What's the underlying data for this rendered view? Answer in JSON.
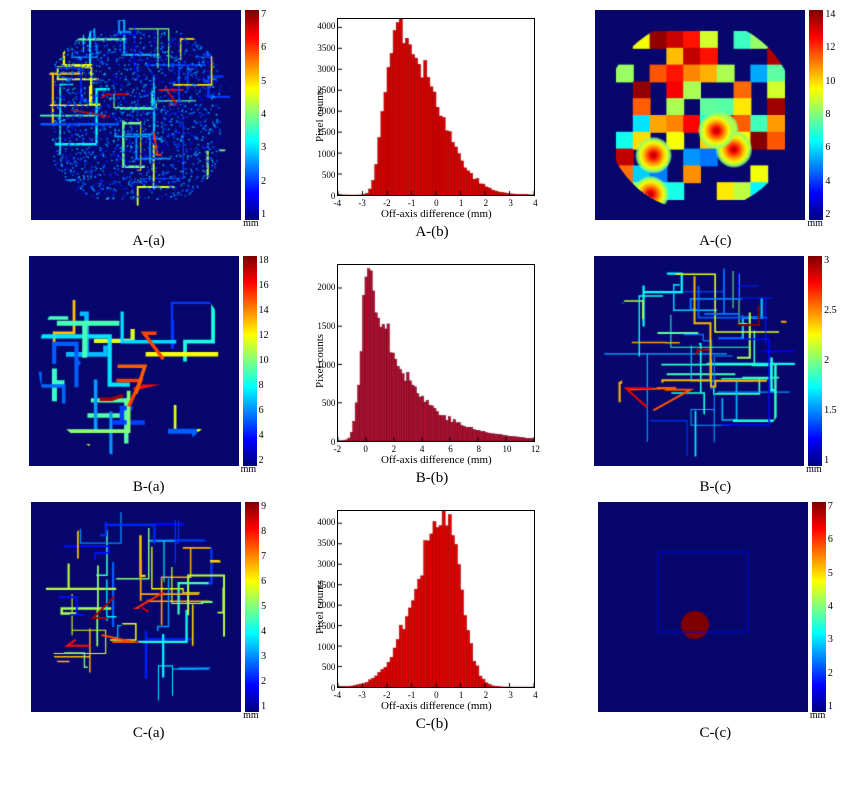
{
  "colormap_jet": [
    "#00007f",
    "#0000ff",
    "#007fff",
    "#00ffff",
    "#7fff7f",
    "#ffff00",
    "#ff7f00",
    "#ff0000",
    "#7f0000"
  ],
  "panels": {
    "A_a": {
      "caption": "A-(a)",
      "cb_min": 1,
      "cb_max": 7,
      "cb_ticks": [
        1,
        2,
        3,
        4,
        5,
        6,
        7
      ],
      "cb_unit": "mm",
      "heatmap_bg": "#06066c",
      "heatmap_size": 210
    },
    "A_b": {
      "caption": "A-(b)",
      "ylabel": "Pixel counts",
      "xlabel": "Off-axis difference (mm)",
      "xlim": [
        -4,
        4
      ],
      "xticks": [
        -4,
        -3,
        -2,
        -1,
        0,
        1,
        2,
        3,
        4
      ],
      "ylim": [
        0,
        4200
      ],
      "yticks": [
        0,
        500,
        1000,
        1500,
        2000,
        2500,
        3000,
        3500,
        4000
      ],
      "bar_color": "#d40000",
      "bar_edge": "#8b0000",
      "mode": "normal",
      "peak_x": -1.5,
      "sigma": 0.9,
      "skew": 0.6,
      "bins": 64
    },
    "A_c": {
      "caption": "A-(c)",
      "cb_min": 2,
      "cb_max": 14,
      "cb_ticks": [
        2,
        4,
        6,
        8,
        10,
        12,
        14
      ],
      "cb_unit": "mm",
      "heatmap_bg": "#06066c",
      "heatmap_size": 210
    },
    "B_a": {
      "caption": "B-(a)",
      "cb_min": 2,
      "cb_max": 18,
      "cb_ticks": [
        2,
        4,
        6,
        8,
        10,
        12,
        14,
        16,
        18
      ],
      "cb_unit": "mm",
      "heatmap_bg": "#06066c",
      "heatmap_size": 210
    },
    "B_b": {
      "caption": "B-(b)",
      "ylabel": "Pixel counts",
      "xlabel": "Off-axis difference (mm)",
      "xlim": [
        -2,
        12
      ],
      "xticks": [
        -2,
        0,
        2,
        4,
        6,
        8,
        10,
        12
      ],
      "ylim": [
        0,
        2300
      ],
      "yticks": [
        0,
        500,
        1000,
        1500,
        2000
      ],
      "bar_color": "#b01030",
      "bar_edge": "#660018",
      "mode": "rightskew",
      "peak_x": 0.2,
      "sigma": 1.2,
      "tail": 10,
      "bins": 80
    },
    "B_c": {
      "caption": "B-(c)",
      "cb_min": 1,
      "cb_max": 3,
      "cb_ticks": [
        1,
        1.5,
        2,
        2.5,
        3
      ],
      "cb_unit": "mm",
      "heatmap_bg": "#06066c",
      "heatmap_size": 210
    },
    "C_a": {
      "caption": "C-(a)",
      "cb_min": 1,
      "cb_max": 9,
      "cb_ticks": [
        1,
        2,
        3,
        4,
        5,
        6,
        7,
        8,
        9
      ],
      "cb_unit": "mm",
      "heatmap_bg": "#06066c",
      "heatmap_size": 210
    },
    "C_b": {
      "caption": "C-(b)",
      "ylabel": "Pixel counts",
      "xlabel": "Off-axis difference (mm)",
      "xlim": [
        -4,
        4
      ],
      "xticks": [
        -4,
        -3,
        -2,
        -1,
        0,
        1,
        2,
        3,
        4
      ],
      "ylim": [
        0,
        4300
      ],
      "yticks": [
        0,
        500,
        1000,
        1500,
        2000,
        2500,
        3000,
        3500,
        4000
      ],
      "bar_color": "#e00000",
      "bar_edge": "#8b0000",
      "mode": "normal",
      "peak_x": 0.3,
      "sigma": 0.9,
      "skew": -0.3,
      "bins": 64
    },
    "C_c": {
      "caption": "C-(c)",
      "cb_min": 1,
      "cb_max": 7,
      "cb_ticks": [
        1,
        2,
        3,
        4,
        5,
        6,
        7
      ],
      "cb_unit": "mm",
      "heatmap_bg": "#06066c",
      "heatmap_size": 210
    }
  },
  "layout": {
    "rows": [
      "A",
      "B",
      "C"
    ],
    "cols": [
      "a",
      "b",
      "c"
    ]
  }
}
